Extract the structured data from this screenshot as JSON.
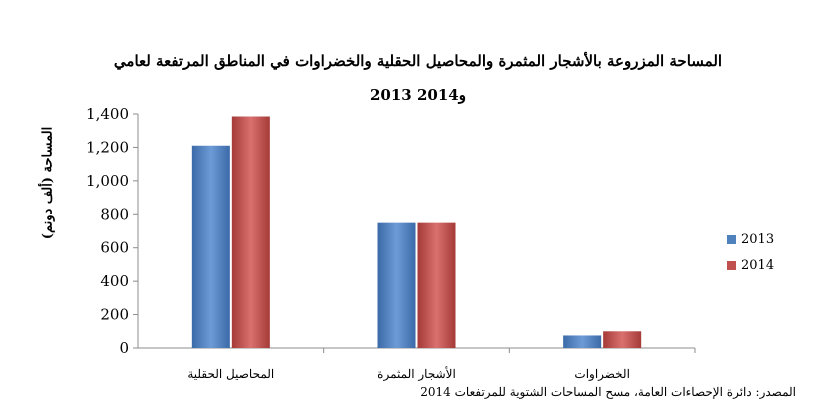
{
  "title_line1": "المساحة المزروعة بالأشجار المثمرة والمحاصيل الحقلية والخضراوات في المناطق المرتفعة لعامي",
  "title_line2": "2013 و2014",
  "source": "المصدر: دائرة الإحصاءات العامة، مسح المساحات الشتوية للمرتفعات 2014",
  "chart_data": {
    "type": "bar",
    "title": "المساحة المزروعة بالأشجار المثمرة والمحاصيل الحقلية والخضراوات في المناطق المرتفعة لعامي 2013 و2014",
    "xlabel": "",
    "ylabel": "المساحة (ألف دونم)",
    "categories": [
      "المحاصيل الحقلية",
      "الأشجار المثمرة",
      "الخضراوات"
    ],
    "series": [
      {
        "name": "2013",
        "values": [
          1210,
          750,
          75
        ],
        "color": "#4F81BD"
      },
      {
        "name": "2014",
        "values": [
          1385,
          750,
          100
        ],
        "color": "#C0504D"
      }
    ],
    "ylim": [
      0,
      1400
    ],
    "yticks": [
      0,
      200,
      400,
      600,
      800,
      1000,
      1200,
      1400
    ],
    "ytick_labels": [
      "0",
      "200",
      "400",
      "600",
      "800",
      "1,000",
      "1,200",
      "1,400"
    ],
    "grid": false,
    "legend_position": "right"
  }
}
